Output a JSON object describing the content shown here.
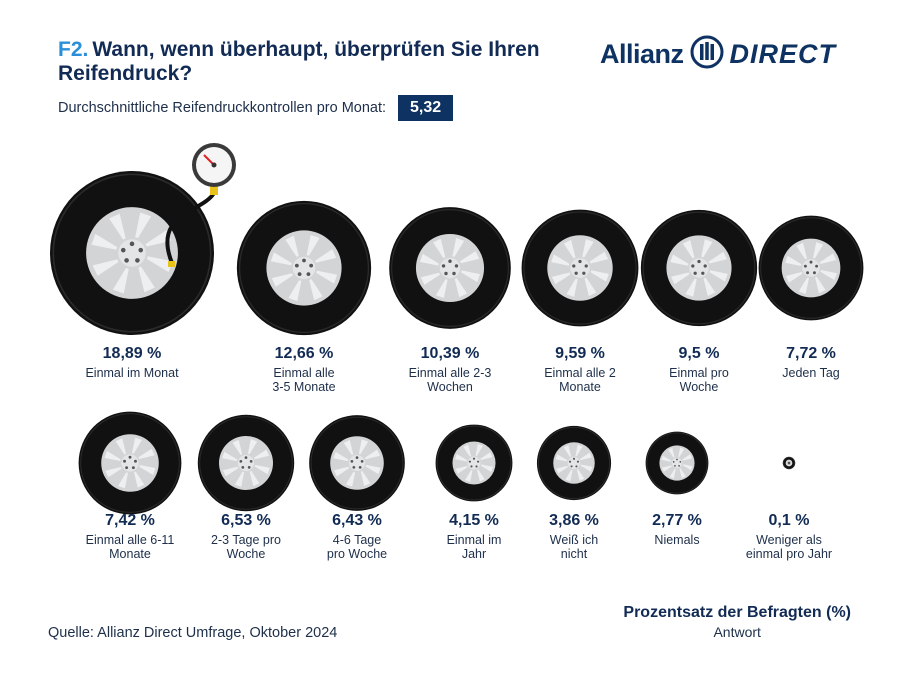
{
  "header": {
    "question_number": "F2.",
    "title": "Wann, wenn überhaupt, überprüfen Sie Ihren Reifendruck?",
    "average_label": "Durchschnittliche Reifendruckkontrollen pro Monat:",
    "average_value": "5,32"
  },
  "brand": {
    "word1": "Allianz",
    "word2": "DIRECT",
    "icon": "allianz-eagle-icon"
  },
  "colors": {
    "tire": "#111111",
    "rim": "#d2d4d6",
    "text": "#122b54",
    "accent": "#2a8fd8",
    "badge": "#0e3262"
  },
  "chart_data": {
    "type": "bubble",
    "unit": "%",
    "items": [
      {
        "value": 18.89,
        "pct_label": "18,89 %",
        "label": [
          "Einmal im Monat"
        ]
      },
      {
        "value": 12.66,
        "pct_label": "12,66 %",
        "label": [
          "Einmal alle",
          "3-5 Monate"
        ]
      },
      {
        "value": 10.39,
        "pct_label": "10,39 %",
        "label": [
          "Einmal alle 2-3",
          "Wochen"
        ]
      },
      {
        "value": 9.59,
        "pct_label": "9,59 %",
        "label": [
          "Einmal alle 2",
          "Monate"
        ]
      },
      {
        "value": 9.5,
        "pct_label": "9,5 %",
        "label": [
          "Einmal pro",
          "Woche"
        ]
      },
      {
        "value": 7.72,
        "pct_label": "7,72 %",
        "label": [
          "Jeden Tag"
        ]
      },
      {
        "value": 7.42,
        "pct_label": "7,42 %",
        "label": [
          "Einmal alle 6-11",
          "Monate"
        ]
      },
      {
        "value": 6.53,
        "pct_label": "6,53 %",
        "label": [
          "2-3 Tage pro",
          "Woche"
        ]
      },
      {
        "value": 6.43,
        "pct_label": "6,43 %",
        "label": [
          "4-6 Tage",
          "pro Woche"
        ]
      },
      {
        "value": 4.15,
        "pct_label": "4,15 %",
        "label": [
          "Einmal im",
          "Jahr"
        ]
      },
      {
        "value": 3.86,
        "pct_label": "3,86 %",
        "label": [
          "Weiß ich",
          "nicht"
        ]
      },
      {
        "value": 2.77,
        "pct_label": "2,77 %",
        "label": [
          "Niemals"
        ]
      },
      {
        "value": 0.1,
        "pct_label": "0,1 %",
        "label": [
          "Weniger als",
          "einmal pro Jahr"
        ]
      }
    ],
    "legend_title": "Prozentsatz der Befragten (%)",
    "legend_subtitle": "Antwort"
  },
  "footer": {
    "source": "Quelle: Allianz Direct Umfrage, Oktober 2024"
  }
}
